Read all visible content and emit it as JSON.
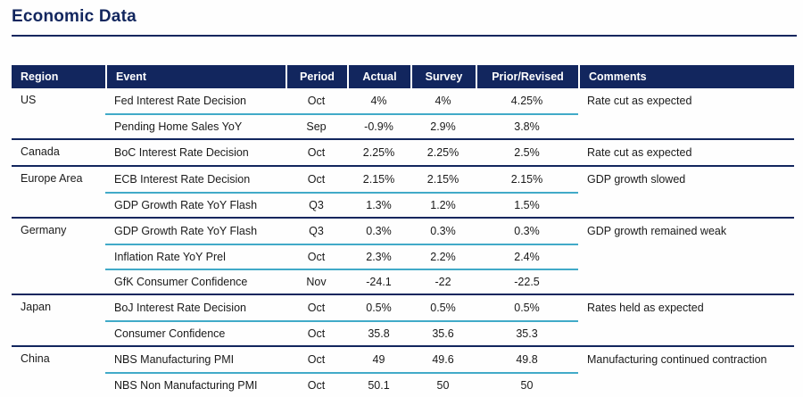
{
  "colors": {
    "navy": "#12265e",
    "cyan_separator": "#41aac8",
    "header_text": "#ffffff",
    "body_text": "#1a1a1a",
    "background": "#fefefe"
  },
  "chart_data": {
    "type": "table",
    "title": "Economic Data",
    "columns": [
      "Region",
      "Event",
      "Period",
      "Actual",
      "Survey",
      "Prior/Revised",
      "Comments"
    ],
    "groups": [
      {
        "region": "US",
        "comment": "Rate cut as expected",
        "rows": [
          {
            "event": "Fed Interest Rate Decision",
            "period": "Oct",
            "actual": "4%",
            "survey": "4%",
            "prior_revised": "4.25%"
          },
          {
            "event": "Pending Home Sales YoY",
            "period": "Sep",
            "actual": "-0.9%",
            "survey": "2.9%",
            "prior_revised": "3.8%"
          }
        ]
      },
      {
        "region": "Canada",
        "comment": "Rate cut as expected",
        "rows": [
          {
            "event": "BoC Interest Rate Decision",
            "period": "Oct",
            "actual": "2.25%",
            "survey": "2.25%",
            "prior_revised": "2.5%"
          }
        ]
      },
      {
        "region": "Europe Area",
        "comment": "GDP growth slowed",
        "rows": [
          {
            "event": "ECB Interest Rate Decision",
            "period": "Oct",
            "actual": "2.15%",
            "survey": "2.15%",
            "prior_revised": "2.15%"
          },
          {
            "event": "GDP Growth Rate YoY Flash",
            "period": "Q3",
            "actual": "1.3%",
            "survey": "1.2%",
            "prior_revised": "1.5%"
          }
        ]
      },
      {
        "region": "Germany",
        "comment": "GDP growth remained weak",
        "rows": [
          {
            "event": "GDP Growth Rate YoY Flash",
            "period": "Q3",
            "actual": "0.3%",
            "survey": "0.3%",
            "prior_revised": "0.3%"
          },
          {
            "event": "Inflation Rate YoY Prel",
            "period": "Oct",
            "actual": "2.3%",
            "survey": "2.2%",
            "prior_revised": "2.4%"
          },
          {
            "event": "GfK Consumer Confidence",
            "period": "Nov",
            "actual": "-24.1",
            "survey": "-22",
            "prior_revised": "-22.5"
          }
        ]
      },
      {
        "region": "Japan",
        "comment": "Rates held as expected",
        "rows": [
          {
            "event": "BoJ Interest Rate Decision",
            "period": "Oct",
            "actual": "0.5%",
            "survey": "0.5%",
            "prior_revised": "0.5%"
          },
          {
            "event": "Consumer Confidence",
            "period": "Oct",
            "actual": "35.8",
            "survey": "35.6",
            "prior_revised": "35.3"
          }
        ]
      },
      {
        "region": "China",
        "comment": "Manufacturing continued contraction",
        "rows": [
          {
            "event": "NBS Manufacturing PMI",
            "period": "Oct",
            "actual": "49",
            "survey": "49.6",
            "prior_revised": "49.8"
          },
          {
            "event": "NBS Non Manufacturing PMI",
            "period": "Oct",
            "actual": "50.1",
            "survey": "50",
            "prior_revised": "50"
          }
        ]
      }
    ]
  }
}
